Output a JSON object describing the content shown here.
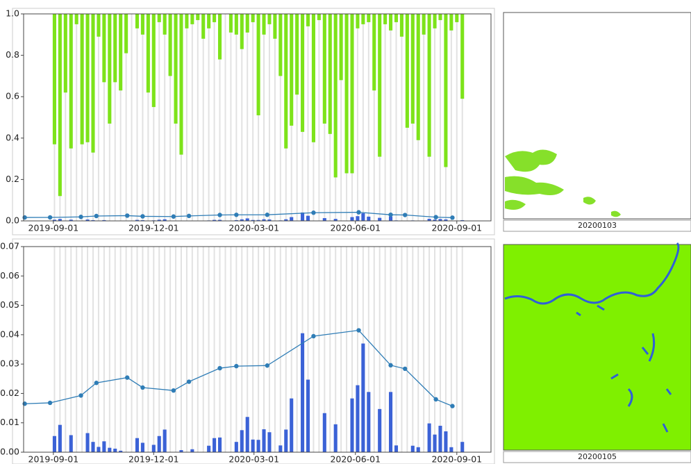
{
  "chart_data": [
    {
      "type": "bar",
      "xlim": [
        "2019-08-05",
        "2020-10-02"
      ],
      "xticks": [
        "2019-09-01",
        "2019-12-01",
        "2020-03-01",
        "2020-06-01",
        "2020-09-01"
      ],
      "ylim": [
        0,
        1
      ],
      "yticks": [
        {
          "value": 0,
          "label": "0.0"
        },
        0.2,
        0.4,
        0.6,
        0.8,
        {
          "value": 1,
          "label": "1.0"
        }
      ],
      "x": [
        "2019-09-02",
        "2019-09-07",
        "2019-09-12",
        "2019-09-17",
        "2019-09-22",
        "2019-09-27",
        "2019-10-02",
        "2019-10-07",
        "2019-10-12",
        "2019-10-17",
        "2019-10-22",
        "2019-10-27",
        "2019-11-01",
        "2019-11-06",
        "2019-11-11",
        "2019-11-16",
        "2019-11-21",
        "2019-11-26",
        "2019-12-01",
        "2019-12-06",
        "2019-12-11",
        "2019-12-16",
        "2019-12-21",
        "2019-12-26",
        "2019-12-31",
        "2020-01-05",
        "2020-01-10",
        "2020-01-15",
        "2020-01-20",
        "2020-01-25",
        "2020-01-30",
        "2020-02-04",
        "2020-02-09",
        "2020-02-14",
        "2020-02-19",
        "2020-02-24",
        "2020-02-29",
        "2020-03-05",
        "2020-03-10",
        "2020-03-15",
        "2020-03-20",
        "2020-03-25",
        "2020-03-30",
        "2020-04-04",
        "2020-04-09",
        "2020-04-14",
        "2020-04-19",
        "2020-04-24",
        "2020-04-29",
        "2020-05-04",
        "2020-05-09",
        "2020-05-14",
        "2020-05-19",
        "2020-05-24",
        "2020-05-29",
        "2020-06-03",
        "2020-06-08",
        "2020-06-13",
        "2020-06-18",
        "2020-06-23",
        "2020-06-28",
        "2020-07-03",
        "2020-07-08",
        "2020-07-13",
        "2020-07-18",
        "2020-07-23",
        "2020-07-28",
        "2020-08-02",
        "2020-08-07",
        "2020-08-12",
        "2020-08-17",
        "2020-08-22",
        "2020-08-27",
        "2020-09-01",
        "2020-09-06"
      ],
      "series": [
        {
          "color": "#7de31a",
          "from": "top",
          "values": [
            0.37,
            0.12,
            0.62,
            0.35,
            0.95,
            0.37,
            0.38,
            0.33,
            0.89,
            0.67,
            0.47,
            0.67,
            0.63,
            0.81,
            null,
            0.93,
            0.9,
            0.62,
            0.55,
            0.96,
            0.9,
            0.7,
            0.47,
            0.32,
            0.93,
            0.95,
            0.97,
            0.88,
            0.93,
            0.96,
            0.78,
            null,
            0.91,
            0.9,
            0.83,
            0.91,
            0.96,
            0.51,
            0.9,
            0.95,
            0.88,
            0.7,
            0.35,
            0.46,
            0.61,
            0.43,
            0.94,
            0.38,
            0.97,
            0.47,
            0.42,
            0.21,
            0.68,
            0.23,
            0.23,
            0.93,
            0.95,
            0.96,
            0.63,
            0.31,
            0.95,
            0.92,
            0.96,
            0.89,
            0.45,
            0.47,
            0.39,
            0.9,
            0.31,
            0.93,
            0.97,
            0.26,
            0.92,
            0.96,
            0.59
          ]
        },
        {
          "color": "#3b62d6",
          "values": [
            0.0055,
            0.0093,
            null,
            0.0058,
            null,
            null,
            0.0065,
            0.0035,
            0.0018,
            0.0037,
            0.0015,
            0.0012,
            0.0005,
            null,
            null,
            0.0048,
            0.0032,
            null,
            0.0025,
            0.0055,
            0.0077,
            null,
            null,
            0.0007,
            null,
            0.001,
            null,
            null,
            0.0022,
            0.0048,
            0.005,
            null,
            null,
            0.0035,
            0.0075,
            0.012,
            0.0043,
            0.0042,
            0.0078,
            0.0068,
            null,
            0.0023,
            0.0077,
            0.0183,
            null,
            0.0405,
            0.0247,
            null,
            null,
            0.0133,
            null,
            0.0095,
            null,
            null,
            0.0183,
            0.0228,
            0.037,
            0.0205,
            null,
            0.0147,
            null,
            0.0205,
            0.0023,
            null,
            null,
            0.0022,
            0.0017,
            null,
            0.0098,
            0.006,
            0.009,
            0.0071,
            0.0017,
            null,
            0.0035
          ]
        },
        {
          "type": "line",
          "color": "#2f7db6",
          "x": [
            "2019-08-06",
            "2019-08-29",
            "2019-09-26",
            "2019-10-10",
            "2019-11-07",
            "2019-11-21",
            "2019-12-19",
            "2020-01-02",
            "2020-01-30",
            "2020-02-14",
            "2020-03-13",
            "2020-04-24",
            "2020-06-04",
            "2020-07-03",
            "2020-07-16",
            "2020-08-13",
            "2020-08-28"
          ],
          "values": [
            0.0165,
            0.0168,
            0.0193,
            0.0236,
            0.0254,
            0.022,
            0.021,
            0.024,
            0.0286,
            0.0293,
            0.0295,
            0.0395,
            0.0415,
            0.0296,
            0.0284,
            0.018,
            0.0157
          ]
        }
      ]
    },
    {
      "type": "bar",
      "xlim": [
        "2019-08-05",
        "2020-10-02"
      ],
      "xticks": [
        "2019-09-01",
        "2019-12-01",
        "2020-03-01",
        "2020-06-01",
        "2020-09-01"
      ],
      "ylim": [
        0,
        0.07
      ],
      "yticks": [
        {
          "value": 0,
          "label": "0.00"
        },
        0.01,
        0.02,
        0.03,
        0.04,
        0.05,
        0.06,
        0.07
      ],
      "x": [
        "2019-09-02",
        "2019-09-07",
        "2019-09-12",
        "2019-09-17",
        "2019-09-22",
        "2019-09-27",
        "2019-10-02",
        "2019-10-07",
        "2019-10-12",
        "2019-10-17",
        "2019-10-22",
        "2019-10-27",
        "2019-11-01",
        "2019-11-06",
        "2019-11-11",
        "2019-11-16",
        "2019-11-21",
        "2019-11-26",
        "2019-12-01",
        "2019-12-06",
        "2019-12-11",
        "2019-12-16",
        "2019-12-21",
        "2019-12-26",
        "2019-12-31",
        "2020-01-05",
        "2020-01-10",
        "2020-01-15",
        "2020-01-20",
        "2020-01-25",
        "2020-01-30",
        "2020-02-04",
        "2020-02-09",
        "2020-02-14",
        "2020-02-19",
        "2020-02-24",
        "2020-02-29",
        "2020-03-05",
        "2020-03-10",
        "2020-03-15",
        "2020-03-20",
        "2020-03-25",
        "2020-03-30",
        "2020-04-04",
        "2020-04-09",
        "2020-04-14",
        "2020-04-19",
        "2020-04-24",
        "2020-04-29",
        "2020-05-04",
        "2020-05-09",
        "2020-05-14",
        "2020-05-19",
        "2020-05-24",
        "2020-05-29",
        "2020-06-03",
        "2020-06-08",
        "2020-06-13",
        "2020-06-18",
        "2020-06-23",
        "2020-06-28",
        "2020-07-03",
        "2020-07-08",
        "2020-07-13",
        "2020-07-18",
        "2020-07-23",
        "2020-07-28",
        "2020-08-02",
        "2020-08-07",
        "2020-08-12",
        "2020-08-17",
        "2020-08-22",
        "2020-08-27",
        "2020-09-01",
        "2020-09-06"
      ],
      "series": [
        {
          "color": "#3b62d6",
          "values": [
            0.0055,
            0.0093,
            null,
            0.0058,
            null,
            null,
            0.0065,
            0.0035,
            0.0018,
            0.0037,
            0.0015,
            0.0012,
            0.0005,
            null,
            null,
            0.0048,
            0.0032,
            null,
            0.0025,
            0.0055,
            0.0077,
            null,
            null,
            0.0007,
            null,
            0.001,
            null,
            null,
            0.0022,
            0.0048,
            0.005,
            null,
            null,
            0.0035,
            0.0075,
            0.012,
            0.0043,
            0.0042,
            0.0078,
            0.0068,
            null,
            0.0023,
            0.0077,
            0.0183,
            null,
            0.0405,
            0.0247,
            null,
            null,
            0.0133,
            null,
            0.0095,
            null,
            null,
            0.0183,
            0.0228,
            0.037,
            0.0205,
            null,
            0.0147,
            null,
            0.0205,
            0.0023,
            null,
            null,
            0.0022,
            0.0017,
            null,
            0.0098,
            0.006,
            0.009,
            0.0071,
            0.0017,
            null,
            0.0035
          ]
        },
        {
          "type": "line",
          "color": "#2f7db6",
          "x": [
            "2019-08-06",
            "2019-08-29",
            "2019-09-26",
            "2019-10-10",
            "2019-11-07",
            "2019-11-21",
            "2019-12-19",
            "2020-01-02",
            "2020-01-30",
            "2020-02-14",
            "2020-03-13",
            "2020-04-24",
            "2020-06-04",
            "2020-07-03",
            "2020-07-16",
            "2020-08-13",
            "2020-08-28"
          ],
          "values": [
            0.0165,
            0.0168,
            0.0193,
            0.0236,
            0.0254,
            0.022,
            0.021,
            0.024,
            0.0286,
            0.0293,
            0.0295,
            0.0395,
            0.0415,
            0.0296,
            0.0284,
            0.018,
            0.0157
          ]
        }
      ]
    }
  ],
  "images": [
    {
      "caption": "20200103"
    },
    {
      "caption": "20200105"
    }
  ]
}
